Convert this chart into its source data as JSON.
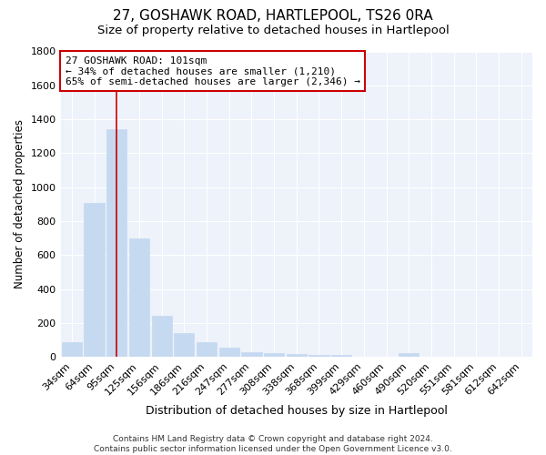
{
  "title": "27, GOSHAWK ROAD, HARTLEPOOL, TS26 0RA",
  "subtitle": "Size of property relative to detached houses in Hartlepool",
  "xlabel": "Distribution of detached houses by size in Hartlepool",
  "ylabel": "Number of detached properties",
  "categories": [
    "34sqm",
    "64sqm",
    "95sqm",
    "125sqm",
    "156sqm",
    "186sqm",
    "216sqm",
    "247sqm",
    "277sqm",
    "308sqm",
    "338sqm",
    "368sqm",
    "399sqm",
    "429sqm",
    "460sqm",
    "490sqm",
    "520sqm",
    "551sqm",
    "581sqm",
    "612sqm",
    "642sqm"
  ],
  "values": [
    90,
    910,
    1340,
    700,
    245,
    140,
    85,
    55,
    30,
    22,
    20,
    15,
    10,
    0,
    0,
    22,
    0,
    0,
    0,
    0,
    0
  ],
  "bar_color": "#c5d9f0",
  "bar_edgecolor": "#c5d9f0",
  "vline_color": "#cc0000",
  "annotation_text": "27 GOSHAWK ROAD: 101sqm\n← 34% of detached houses are smaller (1,210)\n65% of semi-detached houses are larger (2,346) →",
  "annotation_box_color": "#ffffff",
  "annotation_box_edgecolor": "#cc0000",
  "ylim": [
    0,
    1800
  ],
  "footnote": "Contains HM Land Registry data © Crown copyright and database right 2024.\nContains public sector information licensed under the Open Government Licence v3.0.",
  "background_color": "#ffffff",
  "plot_background_color": "#eef2fa",
  "title_fontsize": 11,
  "subtitle_fontsize": 9.5,
  "xlabel_fontsize": 9,
  "ylabel_fontsize": 8.5,
  "footnote_fontsize": 6.5,
  "tick_fontsize": 8,
  "annotation_fontsize": 8
}
